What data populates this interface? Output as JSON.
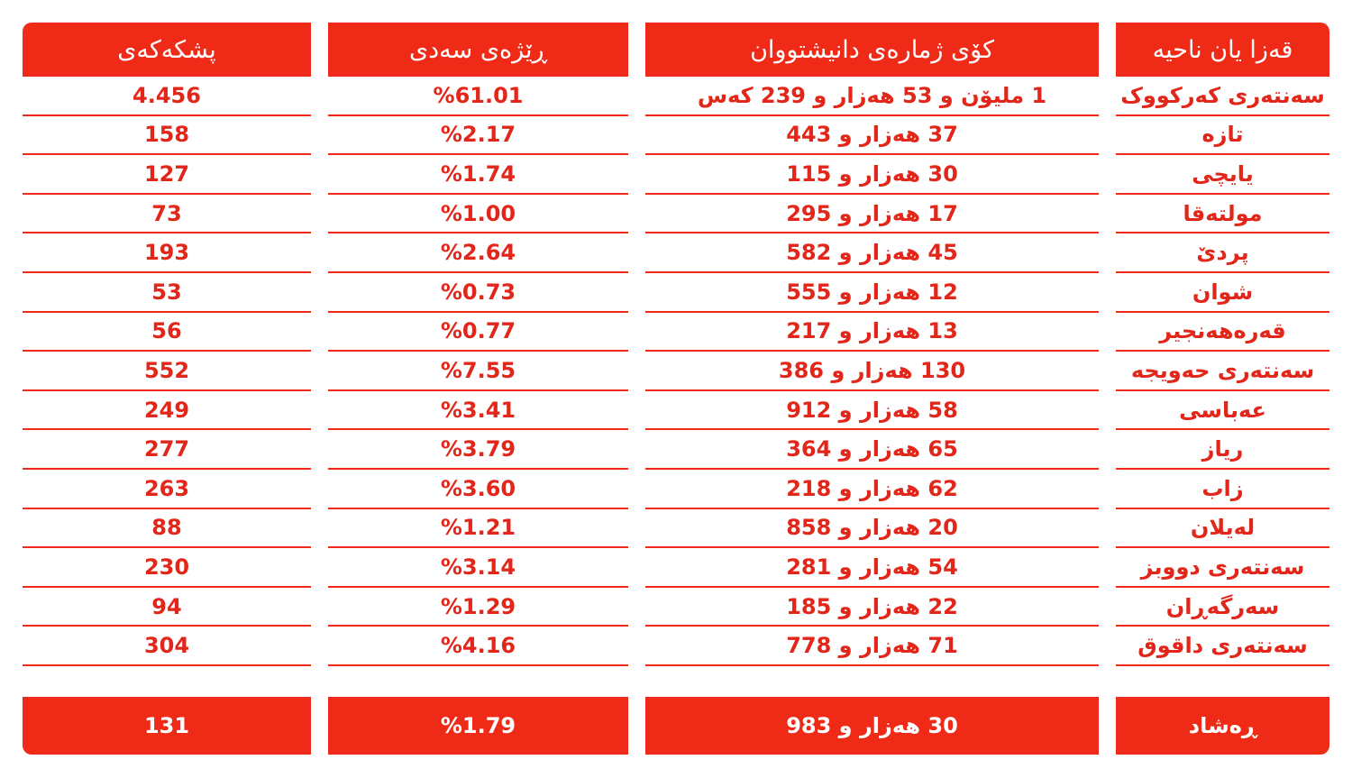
{
  "colors": {
    "accent": "#ef2b18",
    "text": "#e3261a",
    "header_text": "#ffffff"
  },
  "headers": {
    "district": "قەزا یان ناحیە",
    "population": "کۆی ژمارەی دانیشتووان",
    "percentage": "ڕێژەی سەدی",
    "share": "پشکەکەی"
  },
  "rows": [
    {
      "district": "سەنتەری کەرکووک",
      "population": "1 ملیۆن و 53 هەزار و 239 کەس",
      "percentage": "%61.01",
      "share": "4.456"
    },
    {
      "district": "تازە",
      "population": "37 هەزار و 443",
      "percentage": "%2.17",
      "share": "158"
    },
    {
      "district": "یایچی",
      "population": "30 هەزار و 115",
      "percentage": "%1.74",
      "share": "127"
    },
    {
      "district": "مولتەقا",
      "population": "17 هەزار و 295",
      "percentage": "%1.00",
      "share": "73"
    },
    {
      "district": "پردێ",
      "population": "45 هەزار و 582",
      "percentage": "%2.64",
      "share": "193"
    },
    {
      "district": "شوان",
      "population": "12 هەزار و 555",
      "percentage": "%0.73",
      "share": "53"
    },
    {
      "district": "قەرەهەنجیر",
      "population": "13 هەزار و 217",
      "percentage": "%0.77",
      "share": "56"
    },
    {
      "district": "سەنتەری حەویجە",
      "population": "130 هەزار و 386",
      "percentage": "%7.55",
      "share": "552"
    },
    {
      "district": "عەباسی",
      "population": "58 هەزار و 912",
      "percentage": "%3.41",
      "share": "249"
    },
    {
      "district": "ریاز",
      "population": "65 هەزار و 364",
      "percentage": "%3.79",
      "share": "277"
    },
    {
      "district": "زاب",
      "population": "62 هەزار و 218",
      "percentage": "%3.60",
      "share": "263"
    },
    {
      "district": "لەیلان",
      "population": "20 هەزار و 858",
      "percentage": "%1.21",
      "share": "88"
    },
    {
      "district": "سەنتەری دووبز",
      "population": "54 هەزار و 281",
      "percentage": "%3.14",
      "share": "230"
    },
    {
      "district": "سەرگەڕان",
      "population": "22 هەزار و 185",
      "percentage": "%1.29",
      "share": "94"
    },
    {
      "district": "سەنتەری داقوق",
      "population": "71 هەزار و 778",
      "percentage": "%4.16",
      "share": "304"
    }
  ],
  "footer": {
    "district": "ڕەشاد",
    "population": "30 هەزار و 983",
    "percentage": "%1.79",
    "share": "131"
  }
}
